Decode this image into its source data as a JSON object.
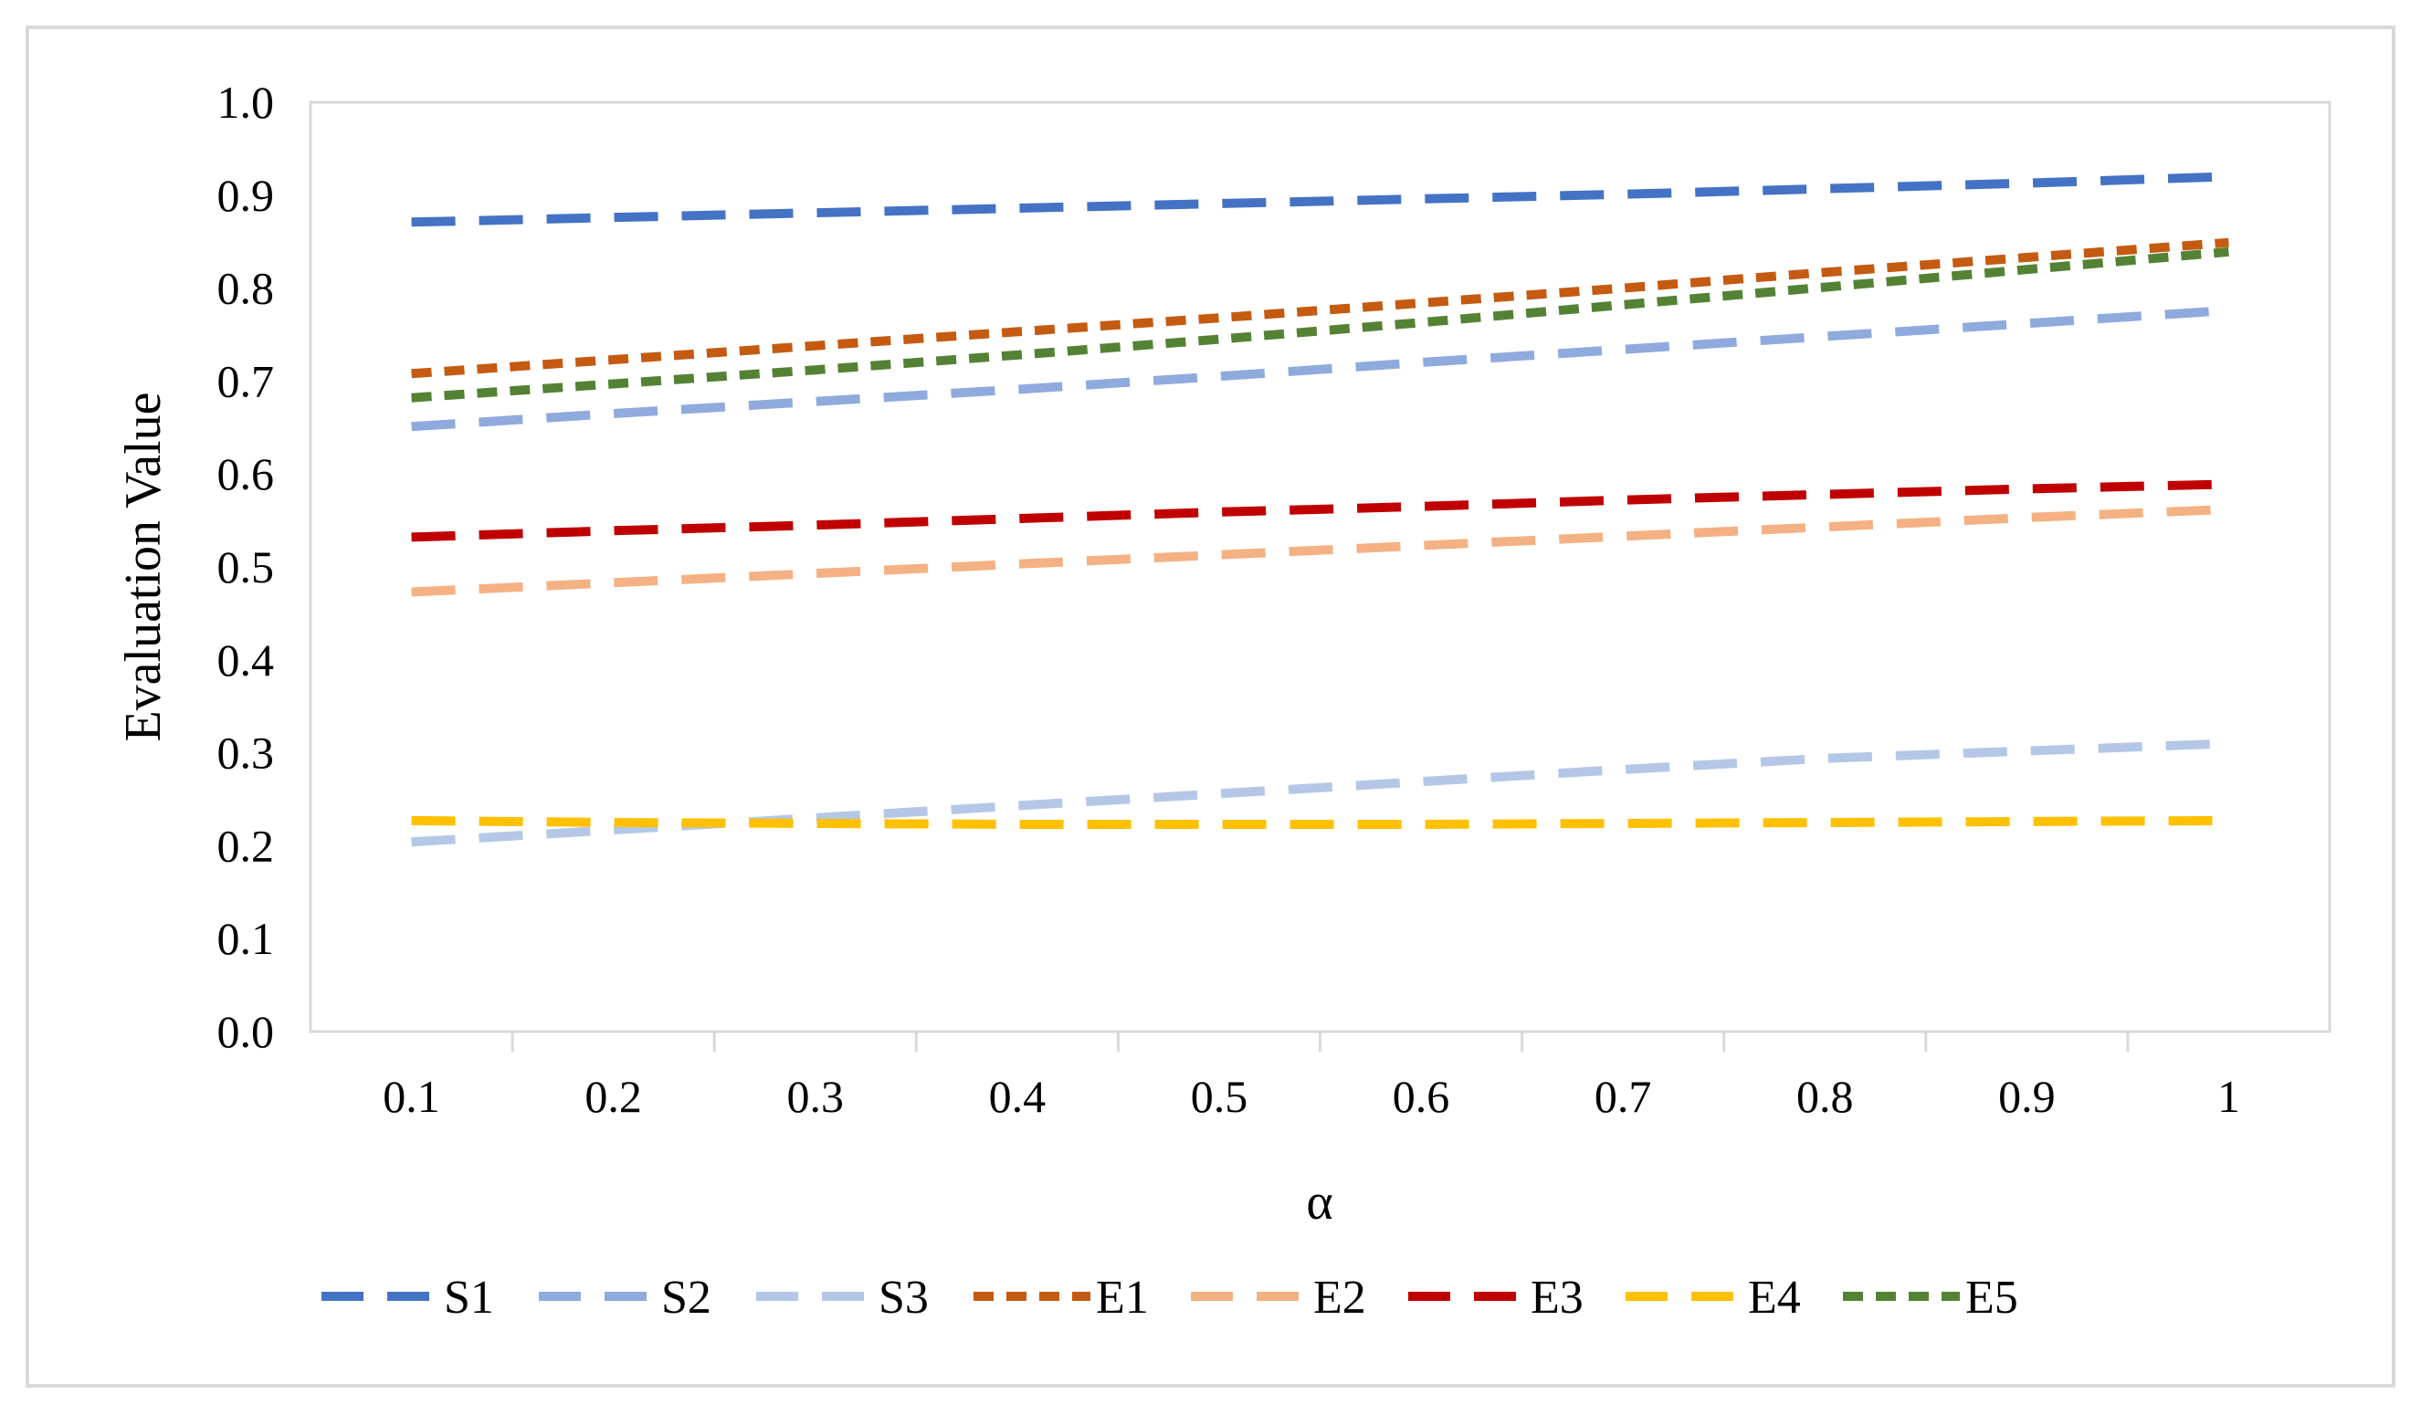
{
  "chart_data": {
    "type": "line",
    "title": "",
    "xlabel": "α",
    "ylabel": "Evaluation Value",
    "categories": [
      "0.1",
      "0.2",
      "0.3",
      "0.4",
      "0.5",
      "0.6",
      "0.7",
      "0.8",
      "0.9",
      "1"
    ],
    "ylim": [
      0,
      1
    ],
    "yticks": [
      "0.0",
      "0.1",
      "0.2",
      "0.3",
      "0.4",
      "0.5",
      "0.6",
      "0.7",
      "0.8",
      "0.9",
      "1.0"
    ],
    "grid": false,
    "legend_position": "bottom",
    "series": [
      {
        "name": "S1",
        "color": "#4472C4",
        "values": [
          0.871,
          0.876,
          0.881,
          0.886,
          0.891,
          0.896,
          0.901,
          0.907,
          0.913,
          0.92
        ]
      },
      {
        "name": "S2",
        "color": "#8FAADC",
        "values": [
          0.651,
          0.665,
          0.678,
          0.691,
          0.705,
          0.72,
          0.734,
          0.748,
          0.762,
          0.776
        ]
      },
      {
        "name": "S3",
        "color": "#B4C7E7",
        "values": [
          0.204,
          0.217,
          0.23,
          0.243,
          0.256,
          0.269,
          0.282,
          0.294,
          0.302,
          0.31
        ]
      },
      {
        "name": "E1",
        "color": "#C55A11",
        "values": [
          0.708,
          0.723,
          0.738,
          0.753,
          0.768,
          0.784,
          0.8,
          0.817,
          0.833,
          0.849
        ]
      },
      {
        "name": "E2",
        "color": "#F4B183",
        "values": [
          0.473,
          0.483,
          0.493,
          0.503,
          0.513,
          0.523,
          0.533,
          0.543,
          0.553,
          0.562
        ]
      },
      {
        "name": "E3",
        "color": "#C00000",
        "values": [
          0.532,
          0.539,
          0.545,
          0.552,
          0.559,
          0.565,
          0.572,
          0.578,
          0.584,
          0.589
        ]
      },
      {
        "name": "E4",
        "color": "#FFC000",
        "values": [
          0.227,
          0.225,
          0.224,
          0.223,
          0.223,
          0.223,
          0.224,
          0.225,
          0.226,
          0.227
        ]
      },
      {
        "name": "E5",
        "color": "#548235",
        "values": [
          0.682,
          0.697,
          0.712,
          0.728,
          0.745,
          0.763,
          0.782,
          0.801,
          0.82,
          0.839
        ]
      }
    ]
  }
}
